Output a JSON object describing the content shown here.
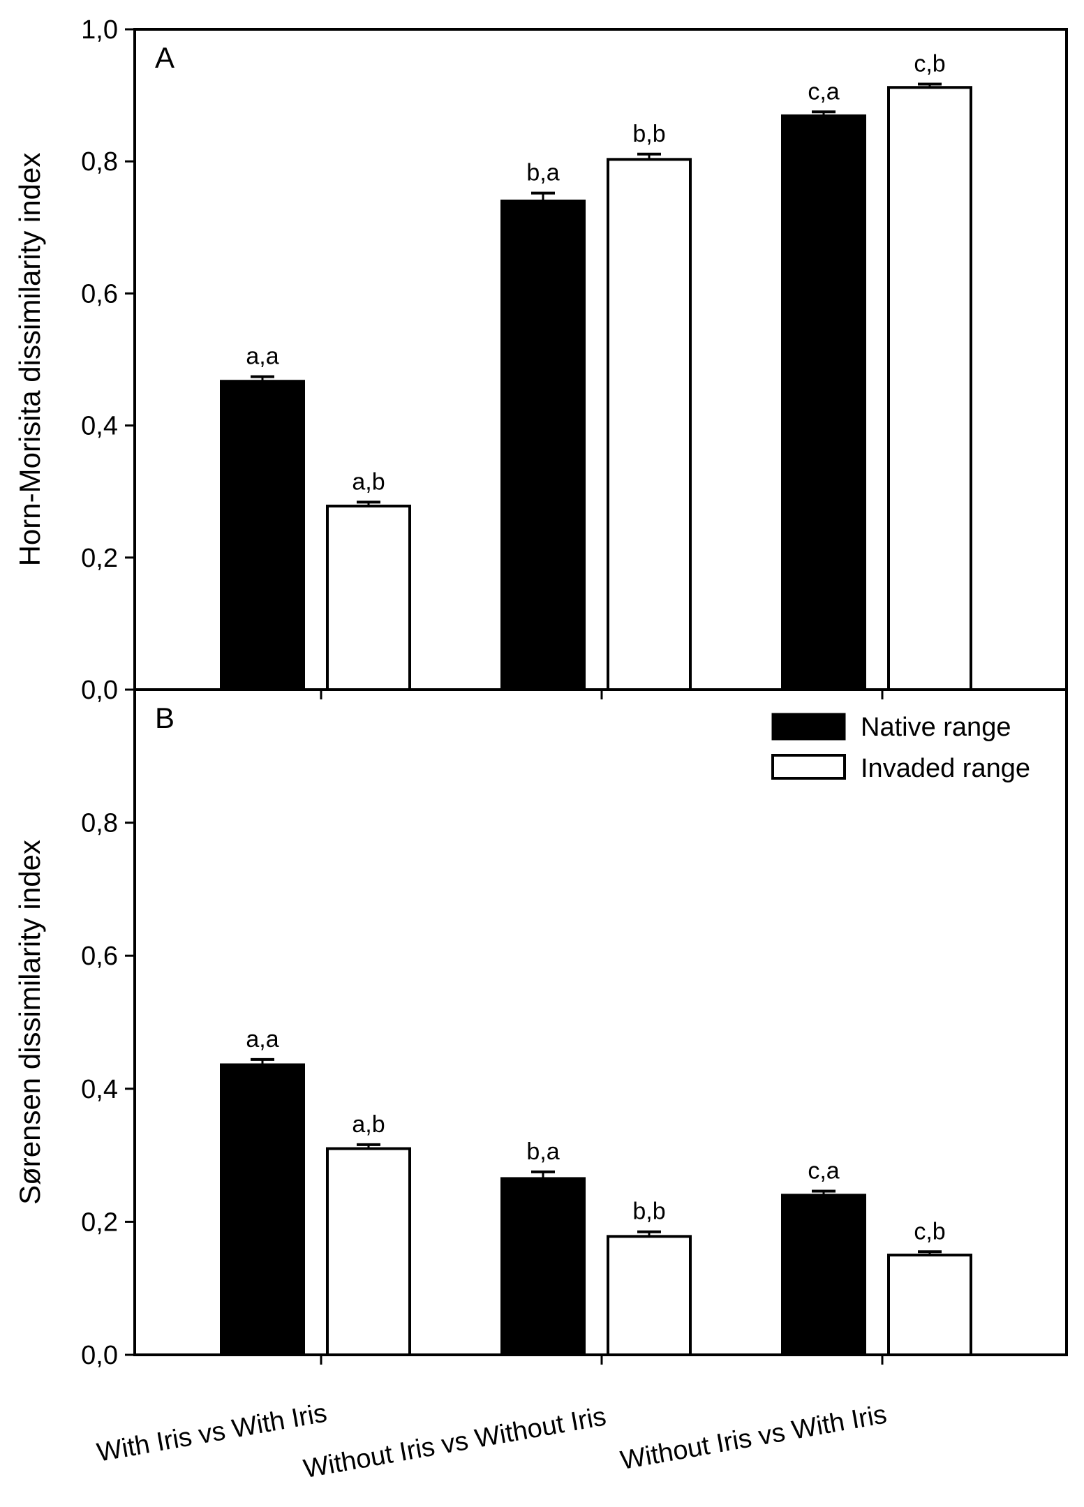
{
  "chart_data": {
    "type": "bar",
    "categories": [
      "With Iris vs With Iris",
      "Without Iris vs Without Iris",
      "Without Iris vs With Iris"
    ],
    "legend": {
      "position": "top-right of panel B",
      "entries": [
        {
          "name": "Native range",
          "fill": "#000000"
        },
        {
          "name": "Invaded range",
          "fill": "#ffffff"
        }
      ]
    },
    "panels": [
      {
        "label": "A",
        "ylabel": "Horn-Morisita dissimilarity index",
        "ylim": [
          0,
          1.0
        ],
        "yticks": [
          "0,0",
          "0,2",
          "0,4",
          "0,6",
          "0,8",
          "1,0"
        ],
        "series": [
          {
            "name": "Native range",
            "values": [
              0.467,
              0.74,
              0.869
            ],
            "errors": [
              0.007,
              0.012,
              0.006
            ],
            "labels": [
              "a,a",
              "b,a",
              "c,a"
            ]
          },
          {
            "name": "Invaded range",
            "values": [
              0.278,
              0.803,
              0.912
            ],
            "errors": [
              0.006,
              0.008,
              0.005
            ],
            "labels": [
              "a,b",
              "b,b",
              "c,b"
            ]
          }
        ]
      },
      {
        "label": "B",
        "ylabel": "Sørensen dissimilarity index",
        "ylim": [
          0,
          1.0
        ],
        "yticks": [
          "0,0",
          "0,2",
          "0,4",
          "0,6",
          "0,8"
        ],
        "series": [
          {
            "name": "Native range",
            "values": [
              0.436,
              0.265,
              0.24
            ],
            "errors": [
              0.008,
              0.01,
              0.006
            ],
            "labels": [
              "a,a",
              "b,a",
              "c,a"
            ]
          },
          {
            "name": "Invaded range",
            "values": [
              0.31,
              0.178,
              0.15
            ],
            "errors": [
              0.006,
              0.007,
              0.005
            ],
            "labels": [
              "a,b",
              "b,b",
              "c,b"
            ]
          }
        ]
      }
    ]
  }
}
